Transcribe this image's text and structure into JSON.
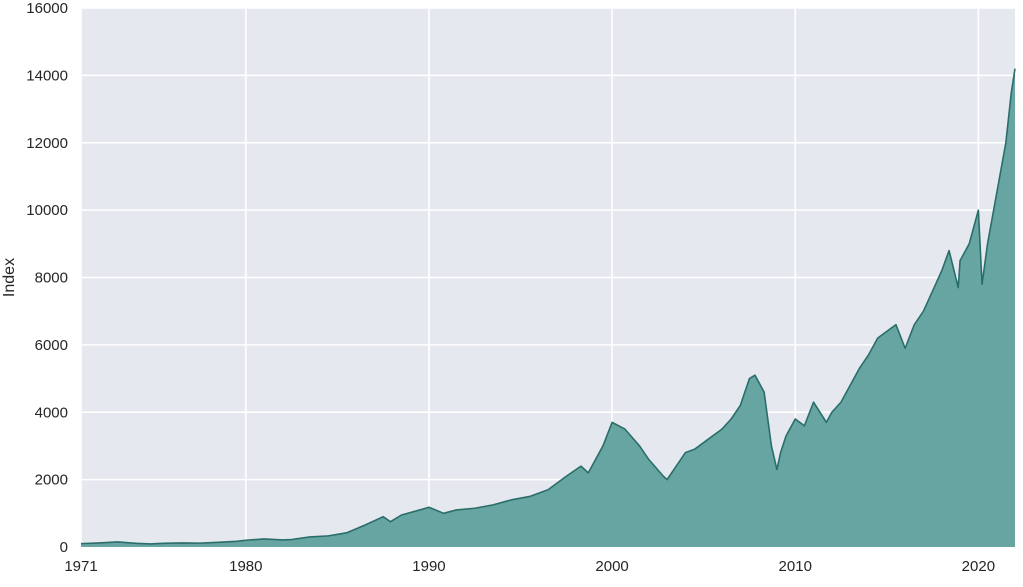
{
  "chart_data": {
    "type": "area",
    "title": "",
    "xlabel": "",
    "ylabel": "Index",
    "xlim": [
      1971,
      2022
    ],
    "ylim": [
      0,
      16000
    ],
    "grid": true,
    "legend": "none",
    "x_ticks": [
      "1971",
      "1980",
      "1990",
      "2000",
      "2010",
      "2020"
    ],
    "y_ticks": [
      "0",
      "2000",
      "4000",
      "6000",
      "8000",
      "10000",
      "12000",
      "14000",
      "16000"
    ],
    "series": [
      {
        "x": [
          1971.0,
          1972.0,
          1973.0,
          1974.0,
          1974.8,
          1975.5,
          1976.5,
          1977.5,
          1978.5,
          1979.5,
          1980.0,
          1981.0,
          1982.0,
          1982.5,
          1983.5,
          1984.5,
          1985.5,
          1986.5,
          1987.5,
          1987.9,
          1988.5,
          1989.5,
          1990.0,
          1990.8,
          1991.5,
          1992.5,
          1993.5,
          1994.5,
          1995.5,
          1996.5,
          1997.5,
          1998.3,
          1998.7,
          1999.5,
          2000.0,
          2000.7,
          2001.5,
          2002.0,
          2002.8,
          2003.0,
          2003.5,
          2004.0,
          2004.5,
          2005.0,
          2005.5,
          2006.0,
          2006.5,
          2007.0,
          2007.5,
          2007.8,
          2008.3,
          2008.7,
          2009.0,
          2009.2,
          2009.5,
          2010.0,
          2010.5,
          2011.0,
          2011.7,
          2012.0,
          2012.5,
          2013.0,
          2013.5,
          2014.0,
          2014.5,
          2015.0,
          2015.5,
          2016.0,
          2016.5,
          2017.0,
          2017.5,
          2018.0,
          2018.4,
          2018.9,
          2019.0,
          2019.5,
          2020.0,
          2020.2,
          2020.5,
          2021.0,
          2021.5,
          2021.8,
          2022.0
        ],
        "values": [
          100,
          120,
          150,
          110,
          90,
          110,
          120,
          115,
          140,
          170,
          200,
          240,
          210,
          220,
          300,
          330,
          420,
          650,
          900,
          750,
          950,
          1100,
          1180,
          1000,
          1100,
          1150,
          1250,
          1400,
          1500,
          1700,
          2100,
          2400,
          2200,
          3000,
          3700,
          3500,
          3000,
          2600,
          2100,
          2000,
          2400,
          2800,
          2900,
          3100,
          3300,
          3500,
          3800,
          4200,
          5000,
          5100,
          4600,
          3000,
          2300,
          2800,
          3300,
          3800,
          3600,
          4300,
          3700,
          4000,
          4300,
          4800,
          5300,
          5700,
          6200,
          6400,
          6600,
          5900,
          6600,
          7000,
          7600,
          8200,
          8800,
          7700,
          8500,
          9000,
          10000,
          7800,
          9000,
          10500,
          12000,
          13500,
          14200
        ]
      }
    ],
    "colors": {
      "fill": "#5b9e9a",
      "line": "#2a6e6a",
      "plot_background": "#e6e8f0",
      "grid": "#ffffff",
      "text": "#262626"
    }
  }
}
